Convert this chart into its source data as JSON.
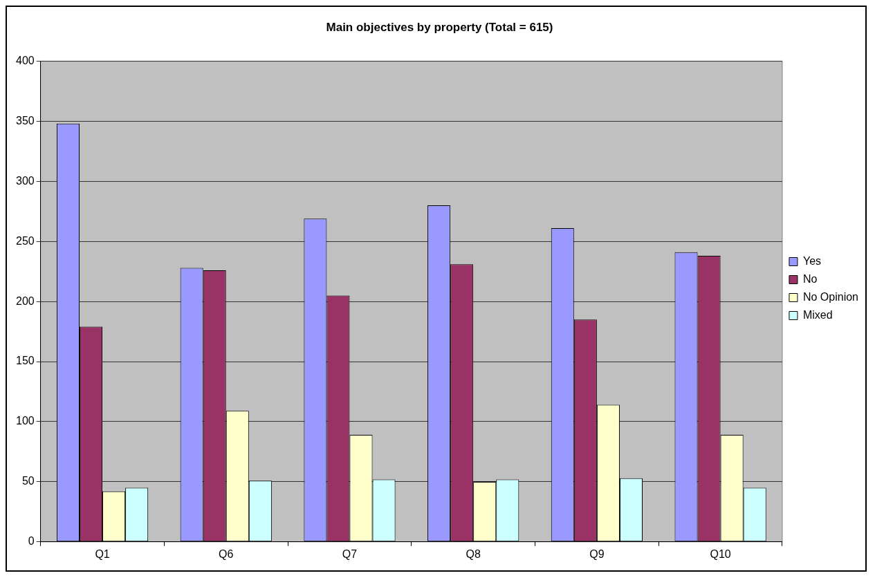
{
  "chart_data": {
    "type": "bar",
    "title": "Main objectives by property (Total = 615)",
    "categories": [
      "Q1",
      "Q6",
      "Q7",
      "Q8",
      "Q9",
      "Q10"
    ],
    "series": [
      {
        "name": "Yes",
        "color": "#9999ff",
        "values": [
          348,
          228,
          269,
          280,
          261,
          241
        ]
      },
      {
        "name": "No",
        "color": "#993366",
        "values": [
          179,
          226,
          205,
          231,
          185,
          238
        ]
      },
      {
        "name": "No Opinion",
        "color": "#ffffcc",
        "values": [
          42,
          109,
          89,
          50,
          114,
          89
        ]
      },
      {
        "name": "Mixed",
        "color": "#ccffff",
        "values": [
          45,
          51,
          52,
          52,
          53,
          45
        ]
      }
    ],
    "ylim": [
      0,
      400
    ],
    "yticks": [
      0,
      50,
      100,
      150,
      200,
      250,
      300,
      350,
      400
    ],
    "grid": "y",
    "legend": "right"
  }
}
